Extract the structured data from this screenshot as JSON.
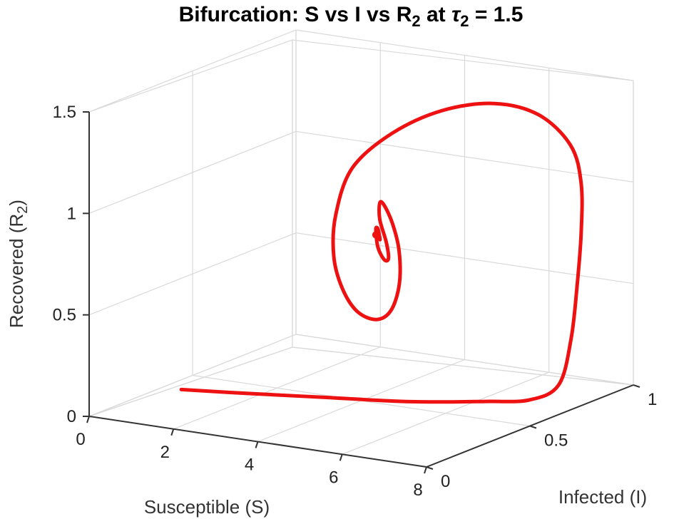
{
  "chart_data": {
    "type": "line",
    "projection": "3d",
    "title": {
      "prefix": "Bifurcation:  S  vs  I  vs  R",
      "prefix_sub": "2",
      "mid": " at ",
      "tau": "τ",
      "tau_sub": "2",
      "suffix": " = 1.5"
    },
    "xlabel": "Susceptible (S)",
    "ylabel": "Infected (I)",
    "zlabel": {
      "main": "Recovered  (R",
      "sub": "2",
      "close": ")"
    },
    "xlim": [
      0,
      8
    ],
    "ylim": [
      0,
      1
    ],
    "zlim": [
      0,
      1.5
    ],
    "x_ticks": [
      "0",
      "2",
      "4",
      "6",
      "8"
    ],
    "y_ticks": [
      "0",
      "0.5",
      "1"
    ],
    "z_ticks": [
      "0",
      "0.5",
      "1",
      "1.5"
    ],
    "grid": true,
    "series": [
      {
        "color": "#ee1111",
        "spiral_center": {
          "S": 4.1,
          "I": 0.55,
          "R2": 0.8
        },
        "x": [
          1.3,
          2.5,
          4.0,
          5.5,
          6.7,
          7.3,
          7.6,
          7.6,
          7.55,
          7.5,
          7.3,
          6.9,
          6.1,
          5.2,
          4.25,
          3.5,
          3.0,
          3.0,
          3.25,
          3.65,
          4.2,
          4.7,
          5.0,
          5.05,
          4.75,
          4.35,
          4.0,
          3.85,
          3.95,
          4.25,
          4.45,
          4.45,
          4.25,
          4.05,
          4.05,
          4.2,
          4.15
        ],
        "y": [
          0.18,
          0.25,
          0.34,
          0.43,
          0.55,
          0.64,
          0.72,
          0.78,
          0.82,
          0.85,
          0.89,
          0.92,
          0.93,
          0.9,
          0.84,
          0.75,
          0.66,
          0.58,
          0.52,
          0.48,
          0.44,
          0.43,
          0.44,
          0.47,
          0.53,
          0.58,
          0.61,
          0.62,
          0.6,
          0.57,
          0.54,
          0.52,
          0.53,
          0.56,
          0.57,
          0.55,
          0.55
        ],
        "z": [
          0.1,
          0.09,
          0.08,
          0.07,
          0.06,
          0.05,
          0.1,
          0.3,
          0.55,
          0.8,
          1.02,
          1.18,
          1.3,
          1.34,
          1.3,
          1.2,
          1.05,
          0.85,
          0.68,
          0.55,
          0.47,
          0.45,
          0.5,
          0.62,
          0.75,
          0.85,
          0.92,
          0.92,
          0.85,
          0.76,
          0.7,
          0.7,
          0.75,
          0.82,
          0.82,
          0.78,
          0.8
        ]
      }
    ]
  }
}
